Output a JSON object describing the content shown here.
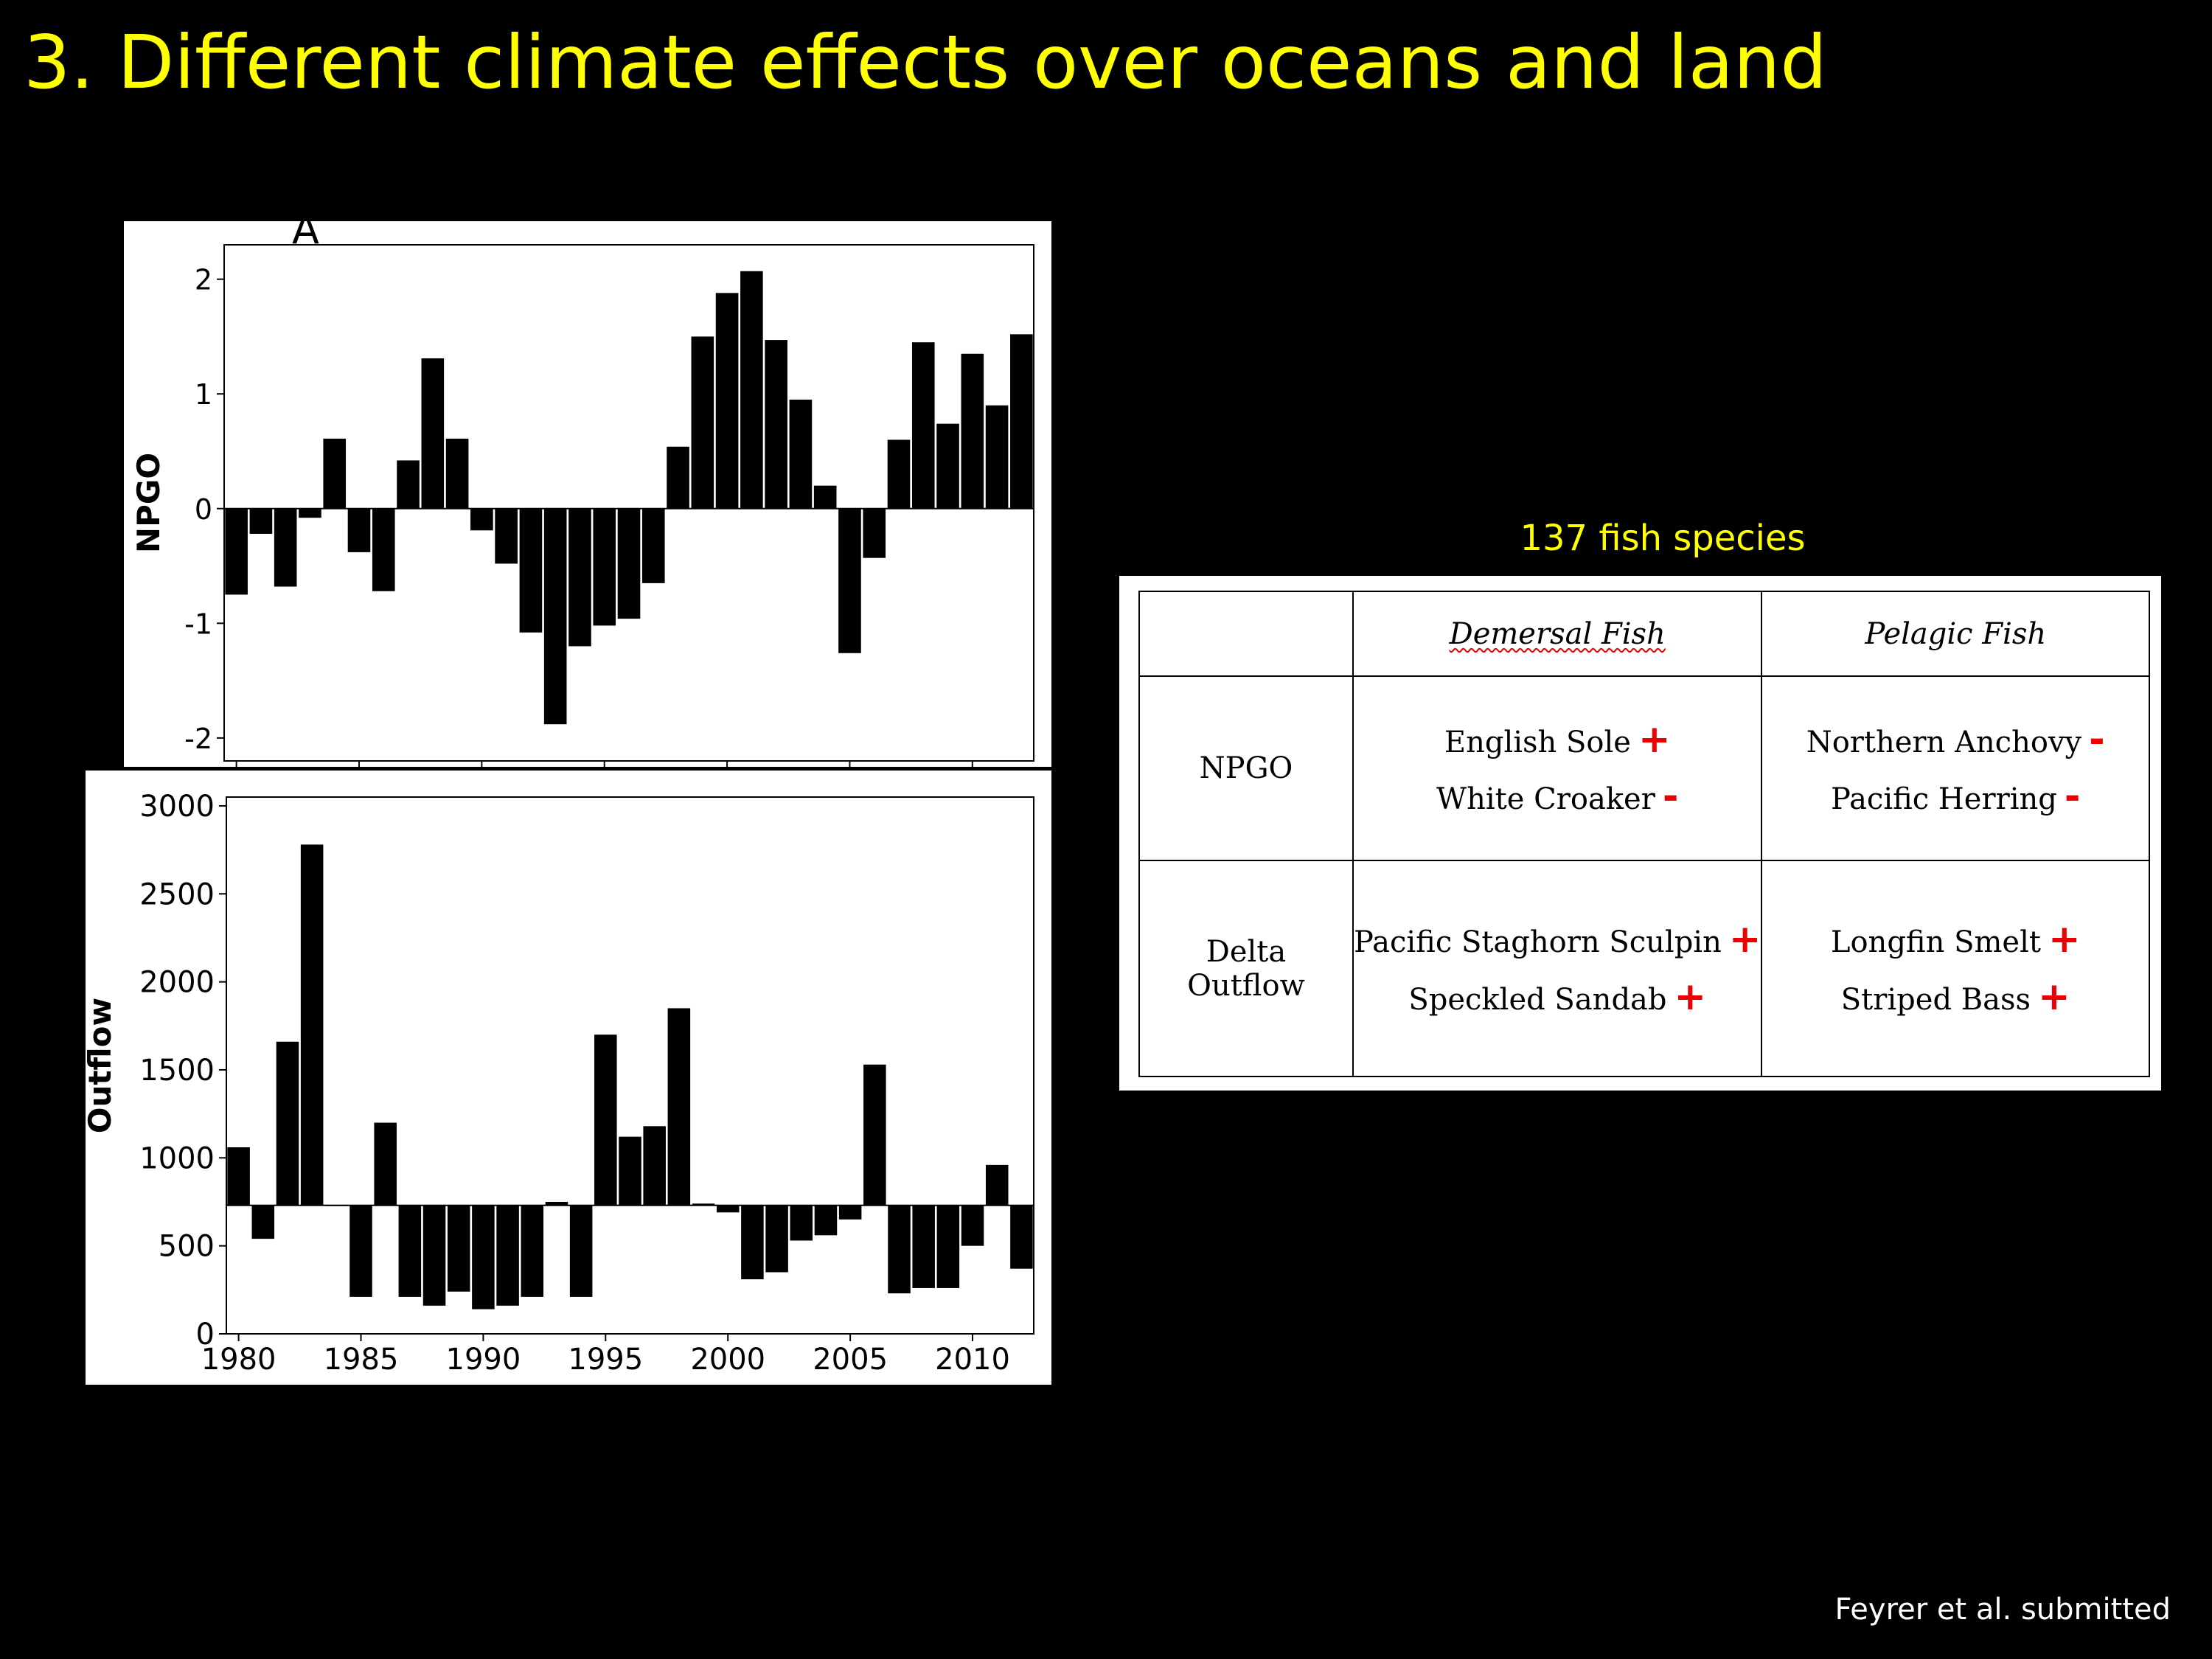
{
  "slide": {
    "title": "3.  Different climate effects over oceans and land",
    "citation": "Feyrer et al. submitted"
  },
  "chart_data": [
    {
      "type": "bar",
      "panel_label": "A",
      "title": "",
      "xlabel": "",
      "ylabel": "NPGO",
      "x": [
        1980,
        1981,
        1982,
        1983,
        1984,
        1985,
        1986,
        1987,
        1988,
        1989,
        1990,
        1991,
        1992,
        1993,
        1994,
        1995,
        1996,
        1997,
        1998,
        1999,
        2000,
        2001,
        2002,
        2003,
        2004,
        2005,
        2006,
        2007,
        2008,
        2009,
        2010,
        2011,
        2012
      ],
      "values": [
        -0.75,
        -0.22,
        -0.68,
        -0.08,
        0.61,
        -0.38,
        -0.72,
        0.42,
        1.31,
        0.61,
        -0.19,
        -0.48,
        -1.08,
        -1.88,
        -1.2,
        -1.02,
        -0.96,
        -0.65,
        0.54,
        1.5,
        1.88,
        2.07,
        1.47,
        0.95,
        0.2,
        -1.26,
        -0.43,
        0.6,
        1.45,
        0.74,
        1.35,
        0.9,
        1.52
      ],
      "ylim": [
        -2.2,
        2.3
      ],
      "yticks": [
        -2,
        -1,
        0,
        1,
        2
      ],
      "ytick_labels": [
        "-2",
        "-1",
        "0",
        "1",
        "2"
      ],
      "baseline": 0
    },
    {
      "type": "bar",
      "title": "",
      "xlabel": "",
      "ylabel": "Outflow",
      "x": [
        1980,
        1981,
        1982,
        1983,
        1984,
        1985,
        1986,
        1987,
        1988,
        1989,
        1990,
        1991,
        1992,
        1993,
        1994,
        1995,
        1996,
        1997,
        1998,
        1999,
        2000,
        2001,
        2002,
        2003,
        2004,
        2005,
        2006,
        2007,
        2008,
        2009,
        2010,
        2011,
        2012
      ],
      "values": [
        1060,
        540,
        1660,
        2780,
        730,
        210,
        1200,
        210,
        160,
        240,
        140,
        160,
        210,
        750,
        210,
        1700,
        1120,
        1180,
        1850,
        740,
        690,
        310,
        350,
        530,
        560,
        650,
        1530,
        230,
        260,
        260,
        500,
        960,
        370
      ],
      "ylim": [
        0,
        3050
      ],
      "yticks": [
        0,
        500,
        1000,
        1500,
        2000,
        2500,
        3000
      ],
      "ytick_labels": [
        "0",
        "500",
        "1000",
        "1500",
        "2000",
        "2500",
        "3000"
      ],
      "xticks": [
        1980,
        1985,
        1990,
        1995,
        2000,
        2005,
        2010
      ],
      "xtick_labels": [
        "1980",
        "1985",
        "1990",
        "1995",
        "2000",
        "2005",
        "2010"
      ],
      "baseline": 730
    }
  ],
  "fish_table": {
    "subtitle": "137 fish species",
    "col_headers": [
      "Demersal Fish",
      "Pelagic Fish"
    ],
    "rows": [
      {
        "label_line1": "NPGO",
        "label_line2": "",
        "demersal": [
          {
            "name": "English Sole",
            "sign": "+"
          },
          {
            "name": "White Croaker",
            "sign": "-"
          }
        ],
        "pelagic": [
          {
            "name": "Northern Anchovy",
            "sign": "-"
          },
          {
            "name": "Pacific Herring",
            "sign": "-"
          }
        ]
      },
      {
        "label_line1": "Delta",
        "label_line2": "Outflow",
        "demersal": [
          {
            "name": "Pacific Staghorn Sculpin",
            "sign": "+"
          },
          {
            "name": "Speckled Sandab",
            "sign": "+"
          }
        ],
        "pelagic": [
          {
            "name": "Longfin Smelt",
            "sign": "+"
          },
          {
            "name": "Striped Bass",
            "sign": "+"
          }
        ]
      }
    ]
  }
}
